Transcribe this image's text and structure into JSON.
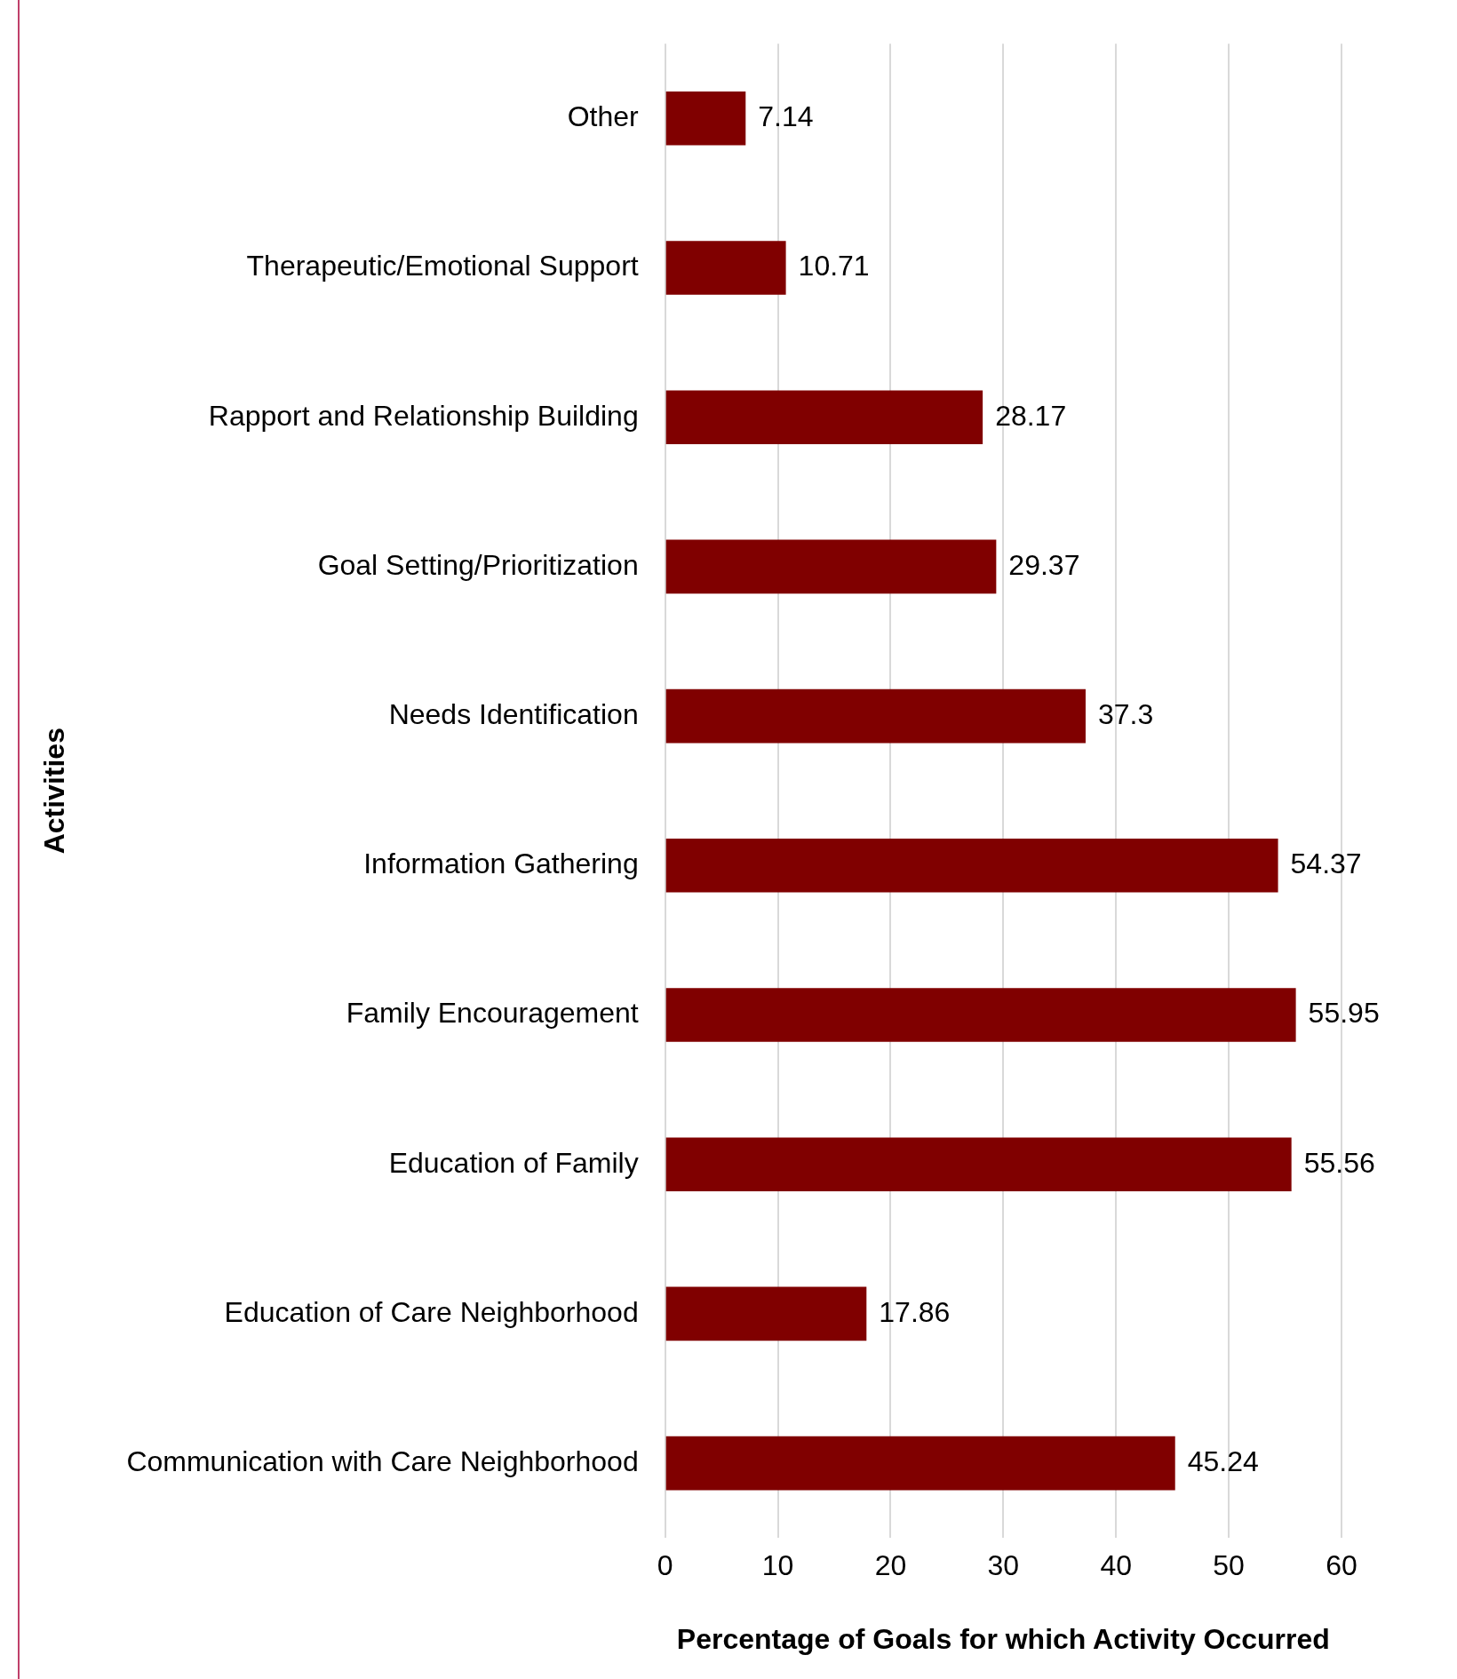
{
  "chart_data": {
    "type": "bar",
    "orientation": "horizontal",
    "xlabel": "Percentage of Goals for which Activity Occurred",
    "ylabel": "Activities",
    "categories": [
      "Other",
      "Therapeutic/Emotional Support",
      "Rapport and Relationship Building",
      "Goal Setting/Prioritization",
      "Needs Identification",
      "Information Gathering",
      "Family Encouragement",
      "Education of Family",
      "Education of Care Neighborhood",
      "Communication with Care Neighborhood"
    ],
    "values": [
      7.14,
      10.71,
      28.17,
      29.37,
      37.3,
      54.37,
      55.95,
      55.56,
      17.86,
      45.24
    ],
    "color": "#800000",
    "xlim": [
      0,
      60
    ],
    "xticks": [
      0,
      10,
      20,
      30,
      40,
      50,
      60
    ],
    "grid": "x",
    "legend": false,
    "data_labels": true
  }
}
